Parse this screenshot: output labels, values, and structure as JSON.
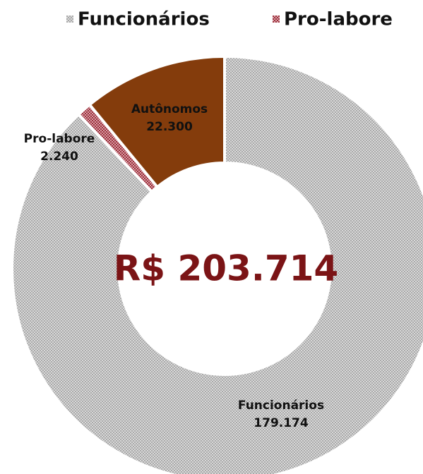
{
  "chart_data": {
    "type": "donut",
    "categories": [
      "Funcionários",
      "Pro-labore",
      "Autônomos"
    ],
    "values": [
      179174,
      2240,
      22300
    ],
    "value_labels": [
      "179.174",
      "2.240",
      "22.300"
    ],
    "colors": [
      "#c4c4c4",
      "#a8404c",
      "#843c0c"
    ],
    "center_label": "R$ 203.714",
    "legend": [
      "Funcionários",
      "Pro-labore"
    ],
    "legend_position": "top"
  }
}
